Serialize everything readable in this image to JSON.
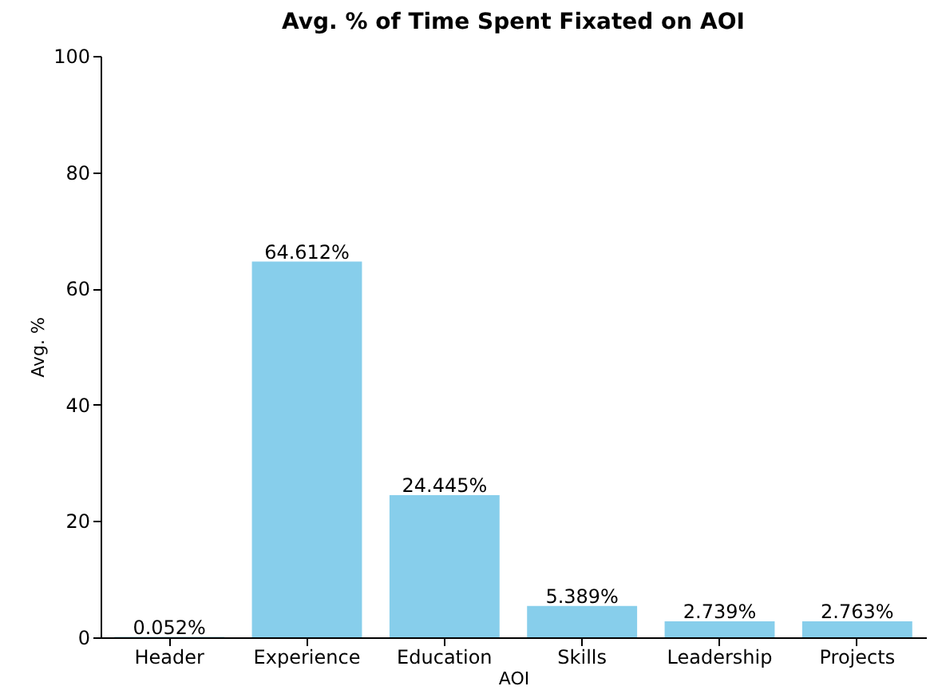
{
  "chart_data": {
    "type": "bar",
    "title": "Avg. % of Time Spent Fixated on AOI",
    "xlabel": "AOI",
    "ylabel": "Avg. %",
    "categories": [
      "Header",
      "Experience",
      "Education",
      "Skills",
      "Leadership",
      "Projects"
    ],
    "values": [
      0.052,
      64.612,
      24.445,
      5.389,
      2.739,
      2.763
    ],
    "value_labels": [
      "0.052%",
      "64.612%",
      "24.445%",
      "5.389%",
      "2.739%",
      "2.763%"
    ],
    "color": "#87ceeb",
    "ylim": [
      0,
      100
    ],
    "yticks": [
      0,
      20,
      40,
      60,
      80,
      100
    ],
    "grid": false
  }
}
